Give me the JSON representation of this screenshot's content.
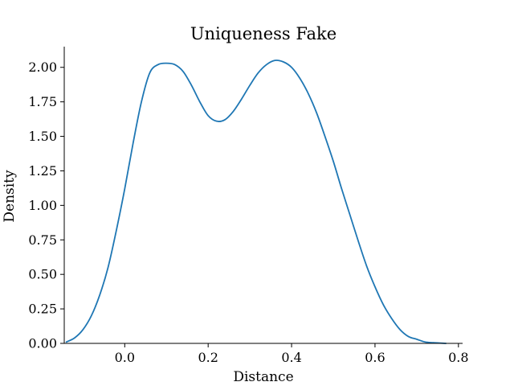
{
  "chart_data": {
    "type": "line",
    "title": "Uniqueness Fake",
    "xlabel": "Distance",
    "ylabel": "Density",
    "xlim": [
      -0.145,
      0.81
    ],
    "ylim": [
      0.0,
      2.15
    ],
    "xticks": [
      0.0,
      0.2,
      0.4,
      0.6,
      0.8
    ],
    "xtick_labels": [
      "0.0",
      "0.2",
      "0.4",
      "0.6",
      "0.8"
    ],
    "yticks": [
      0.0,
      0.25,
      0.5,
      0.75,
      1.0,
      1.25,
      1.5,
      1.75,
      2.0
    ],
    "ytick_labels": [
      "0.00",
      "0.25",
      "0.50",
      "0.75",
      "1.00",
      "1.25",
      "1.50",
      "1.75",
      "2.00"
    ],
    "grid": false,
    "series": [
      {
        "color": "#1f77b4",
        "x": [
          -0.14,
          -0.12,
          -0.1,
          -0.08,
          -0.06,
          -0.04,
          -0.02,
          0.0,
          0.02,
          0.04,
          0.06,
          0.08,
          0.1,
          0.12,
          0.14,
          0.16,
          0.18,
          0.2,
          0.22,
          0.24,
          0.26,
          0.28,
          0.3,
          0.32,
          0.34,
          0.36,
          0.38,
          0.4,
          0.42,
          0.44,
          0.46,
          0.48,
          0.5,
          0.52,
          0.54,
          0.56,
          0.58,
          0.6,
          0.62,
          0.64,
          0.66,
          0.68,
          0.7,
          0.72,
          0.74,
          0.77
        ],
        "y": [
          0.01,
          0.04,
          0.1,
          0.2,
          0.35,
          0.55,
          0.82,
          1.12,
          1.45,
          1.75,
          1.96,
          2.02,
          2.03,
          2.02,
          1.97,
          1.87,
          1.75,
          1.65,
          1.61,
          1.62,
          1.68,
          1.77,
          1.87,
          1.96,
          2.02,
          2.05,
          2.04,
          2.0,
          1.92,
          1.81,
          1.67,
          1.5,
          1.32,
          1.12,
          0.93,
          0.74,
          0.56,
          0.41,
          0.28,
          0.18,
          0.1,
          0.05,
          0.03,
          0.01,
          0.005,
          0.0
        ]
      }
    ]
  }
}
